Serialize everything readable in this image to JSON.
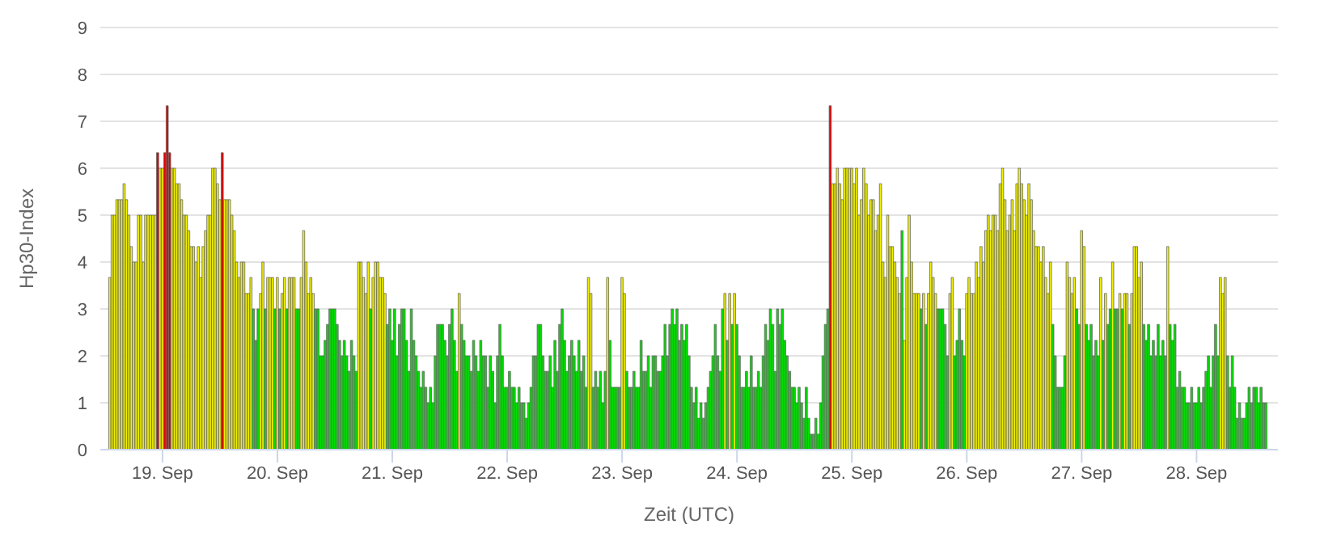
{
  "chart_data": {
    "type": "bar",
    "xlabel": "Zeit (UTC)",
    "ylabel": "Hp30-Index",
    "grid": "y",
    "legend": false,
    "xlim": [
      "--09-18T11:00",
      "--09-28T17:00"
    ],
    "xticks": [
      {
        "value": "--09-19",
        "label": "19. Sep"
      },
      {
        "value": "--09-20",
        "label": "20. Sep"
      },
      {
        "value": "--09-21",
        "label": "21. Sep"
      },
      {
        "value": "--09-22",
        "label": "22. Sep"
      },
      {
        "value": "--09-23",
        "label": "23. Sep"
      },
      {
        "value": "--09-24",
        "label": "24. Sep"
      },
      {
        "value": "--09-25",
        "label": "25. Sep"
      },
      {
        "value": "--09-26",
        "label": "26. Sep"
      },
      {
        "value": "--09-27",
        "label": "27. Sep"
      },
      {
        "value": "--09-28",
        "label": "28. Sep"
      }
    ],
    "ylim": [
      0,
      9
    ],
    "yticks": [
      0,
      1,
      2,
      3,
      4,
      5,
      6,
      7,
      8,
      9
    ],
    "x": [
      "--09-18T13:00",
      "--09-18T13:30",
      "--09-18T14:00",
      "--09-18T14:30",
      "--09-18T15:00",
      "--09-18T15:30",
      "--09-18T16:00",
      "--09-18T16:30",
      "--09-18T17:00",
      "--09-18T17:30",
      "--09-18T18:00",
      "--09-18T18:30",
      "--09-18T19:00",
      "--09-18T19:30",
      "--09-18T20:00",
      "--09-18T20:30",
      "--09-18T21:00",
      "--09-18T21:30",
      "--09-18T22:00",
      "--09-18T22:30",
      "--09-18T23:00",
      "--09-18T23:30",
      "--09-19T00:00",
      "--09-19T00:30",
      "--09-19T01:00",
      "--09-19T01:30",
      "--09-19T02:00",
      "--09-19T02:30",
      "--09-19T03:00",
      "--09-19T03:30",
      "--09-19T04:00",
      "--09-19T04:30",
      "--09-19T05:00",
      "--09-19T05:30",
      "--09-19T06:00",
      "--09-19T06:30",
      "--09-19T07:00",
      "--09-19T07:30",
      "--09-19T08:00",
      "--09-19T08:30",
      "--09-19T09:00",
      "--09-19T09:30",
      "--09-19T10:00",
      "--09-19T10:30",
      "--09-19T11:00",
      "--09-19T11:30",
      "--09-19T12:00",
      "--09-19T12:30",
      "--09-19T13:00",
      "--09-19T13:30",
      "--09-19T14:00",
      "--09-19T14:30",
      "--09-19T15:00",
      "--09-19T15:30",
      "--09-19T16:00",
      "--09-19T16:30",
      "--09-19T17:00",
      "--09-19T17:30",
      "--09-19T18:00",
      "--09-19T18:30",
      "--09-19T19:00",
      "--09-19T19:30",
      "--09-19T20:00",
      "--09-19T20:30",
      "--09-19T21:00",
      "--09-19T21:30",
      "--09-19T22:00",
      "--09-19T22:30",
      "--09-19T23:00",
      "--09-19T23:30",
      "--09-20T00:00",
      "--09-20T00:30",
      "--09-20T01:00",
      "--09-20T01:30",
      "--09-20T02:00",
      "--09-20T02:30",
      "--09-20T03:00",
      "--09-20T03:30",
      "--09-20T04:00",
      "--09-20T04:30",
      "--09-20T05:00",
      "--09-20T05:30",
      "--09-20T06:00",
      "--09-20T06:30",
      "--09-20T07:00",
      "--09-20T07:30",
      "--09-20T08:00",
      "--09-20T08:30",
      "--09-20T09:00",
      "--09-20T09:30",
      "--09-20T10:00",
      "--09-20T10:30",
      "--09-20T11:00",
      "--09-20T11:30",
      "--09-20T12:00",
      "--09-20T12:30",
      "--09-20T13:00",
      "--09-20T13:30",
      "--09-20T14:00",
      "--09-20T14:30",
      "--09-20T15:00",
      "--09-20T15:30",
      "--09-20T16:00",
      "--09-20T16:30",
      "--09-20T17:00",
      "--09-20T17:30",
      "--09-20T18:00",
      "--09-20T18:30",
      "--09-20T19:00",
      "--09-20T19:30",
      "--09-20T20:00",
      "--09-20T20:30",
      "--09-20T21:00",
      "--09-20T21:30",
      "--09-20T22:00",
      "--09-20T22:30",
      "--09-20T23:00",
      "--09-20T23:30",
      "--09-21T00:00",
      "--09-21T00:30",
      "--09-21T01:00",
      "--09-21T01:30",
      "--09-21T02:00",
      "--09-21T02:30",
      "--09-21T03:00",
      "--09-21T03:30",
      "--09-21T04:00",
      "--09-21T04:30",
      "--09-21T05:00",
      "--09-21T05:30",
      "--09-21T06:00",
      "--09-21T06:30",
      "--09-21T07:00",
      "--09-21T07:30",
      "--09-21T08:00",
      "--09-21T08:30",
      "--09-21T09:00",
      "--09-21T09:30",
      "--09-21T10:00",
      "--09-21T10:30",
      "--09-21T11:00",
      "--09-21T11:30",
      "--09-21T12:00",
      "--09-21T12:30",
      "--09-21T13:00",
      "--09-21T13:30",
      "--09-21T14:00",
      "--09-21T14:30",
      "--09-21T15:00",
      "--09-21T15:30",
      "--09-21T16:00",
      "--09-21T16:30",
      "--09-21T17:00",
      "--09-21T17:30",
      "--09-21T18:00",
      "--09-21T18:30",
      "--09-21T19:00",
      "--09-21T19:30",
      "--09-21T20:00",
      "--09-21T20:30",
      "--09-21T21:00",
      "--09-21T21:30",
      "--09-21T22:00",
      "--09-21T22:30",
      "--09-21T23:00",
      "--09-21T23:30",
      "--09-22T00:00",
      "--09-22T00:30",
      "--09-22T01:00",
      "--09-22T01:30",
      "--09-22T02:00",
      "--09-22T02:30",
      "--09-22T03:00",
      "--09-22T03:30",
      "--09-22T04:00",
      "--09-22T04:30",
      "--09-22T05:00",
      "--09-22T05:30",
      "--09-22T06:00",
      "--09-22T06:30",
      "--09-22T07:00",
      "--09-22T07:30",
      "--09-22T08:00",
      "--09-22T08:30",
      "--09-22T09:00",
      "--09-22T09:30",
      "--09-22T10:00",
      "--09-22T10:30",
      "--09-22T11:00",
      "--09-22T11:30",
      "--09-22T12:00",
      "--09-22T12:30",
      "--09-22T13:00",
      "--09-22T13:30",
      "--09-22T14:00",
      "--09-22T14:30",
      "--09-22T15:00",
      "--09-22T15:30",
      "--09-22T16:00",
      "--09-22T16:30",
      "--09-22T17:00",
      "--09-22T17:30",
      "--09-22T18:00",
      "--09-22T18:30",
      "--09-22T19:00",
      "--09-22T19:30",
      "--09-22T20:00",
      "--09-22T20:30",
      "--09-22T21:00",
      "--09-22T21:30",
      "--09-22T22:00",
      "--09-22T22:30",
      "--09-22T23:00",
      "--09-22T23:30",
      "--09-23T00:00",
      "--09-23T00:30",
      "--09-23T01:00",
      "--09-23T01:30",
      "--09-23T02:00",
      "--09-23T02:30",
      "--09-23T03:00",
      "--09-23T03:30",
      "--09-23T04:00",
      "--09-23T04:30",
      "--09-23T05:00",
      "--09-23T05:30",
      "--09-23T06:00",
      "--09-23T06:30",
      "--09-23T07:00",
      "--09-23T07:30",
      "--09-23T08:00",
      "--09-23T08:30",
      "--09-23T09:00",
      "--09-23T09:30",
      "--09-23T10:00",
      "--09-23T10:30",
      "--09-23T11:00",
      "--09-23T11:30",
      "--09-23T12:00",
      "--09-23T12:30",
      "--09-23T13:00",
      "--09-23T13:30",
      "--09-23T14:00",
      "--09-23T14:30",
      "--09-23T15:00",
      "--09-23T15:30",
      "--09-23T16:00",
      "--09-23T16:30",
      "--09-23T17:00",
      "--09-23T17:30",
      "--09-23T18:00",
      "--09-23T18:30",
      "--09-23T19:00",
      "--09-23T19:30",
      "--09-23T20:00",
      "--09-23T20:30",
      "--09-23T21:00",
      "--09-23T21:30",
      "--09-23T22:00",
      "--09-23T22:30",
      "--09-23T23:00",
      "--09-23T23:30",
      "--09-24T00:00",
      "--09-24T00:30",
      "--09-24T01:00",
      "--09-24T01:30",
      "--09-24T02:00",
      "--09-24T02:30",
      "--09-24T03:00",
      "--09-24T03:30",
      "--09-24T04:00",
      "--09-24T04:30",
      "--09-24T05:00",
      "--09-24T05:30",
      "--09-24T06:00",
      "--09-24T06:30",
      "--09-24T07:00",
      "--09-24T07:30",
      "--09-24T08:00",
      "--09-24T08:30",
      "--09-24T09:00",
      "--09-24T09:30",
      "--09-24T10:00",
      "--09-24T10:30",
      "--09-24T11:00",
      "--09-24T11:30",
      "--09-24T12:00",
      "--09-24T12:30",
      "--09-24T13:00",
      "--09-24T13:30",
      "--09-24T14:00",
      "--09-24T14:30",
      "--09-24T15:00",
      "--09-24T15:30",
      "--09-24T16:00",
      "--09-24T16:30",
      "--09-24T17:00",
      "--09-24T17:30",
      "--09-24T18:00",
      "--09-24T18:30",
      "--09-24T19:00",
      "--09-24T19:30",
      "--09-24T20:00",
      "--09-24T20:30",
      "--09-24T21:00",
      "--09-24T21:30",
      "--09-24T22:00",
      "--09-24T22:30",
      "--09-24T23:00",
      "--09-24T23:30",
      "--09-25T00:00",
      "--09-25T00:30",
      "--09-25T01:00",
      "--09-25T01:30",
      "--09-25T02:00",
      "--09-25T02:30",
      "--09-25T03:00",
      "--09-25T03:30",
      "--09-25T04:00",
      "--09-25T04:30",
      "--09-25T05:00",
      "--09-25T05:30",
      "--09-25T06:00",
      "--09-25T06:30",
      "--09-25T07:00",
      "--09-25T07:30",
      "--09-25T08:00",
      "--09-25T08:30",
      "--09-25T09:00",
      "--09-25T09:30",
      "--09-25T10:00",
      "--09-25T10:30",
      "--09-25T11:00",
      "--09-25T11:30",
      "--09-25T12:00",
      "--09-25T12:30",
      "--09-25T13:00",
      "--09-25T13:30",
      "--09-25T14:00",
      "--09-25T14:30",
      "--09-25T15:00",
      "--09-25T15:30",
      "--09-25T16:00",
      "--09-25T16:30",
      "--09-25T17:00",
      "--09-25T17:30",
      "--09-25T18:00",
      "--09-25T18:30",
      "--09-25T19:00",
      "--09-25T19:30",
      "--09-25T20:00",
      "--09-25T20:30",
      "--09-25T21:00",
      "--09-25T21:30",
      "--09-25T22:00",
      "--09-25T22:30",
      "--09-25T23:00",
      "--09-25T23:30",
      "--09-26T00:00",
      "--09-26T00:30",
      "--09-26T01:00",
      "--09-26T01:30",
      "--09-26T02:00",
      "--09-26T02:30",
      "--09-26T03:00",
      "--09-26T03:30",
      "--09-26T04:00",
      "--09-26T04:30",
      "--09-26T05:00",
      "--09-26T05:30",
      "--09-26T06:00",
      "--09-26T06:30",
      "--09-26T07:00",
      "--09-26T07:30",
      "--09-26T08:00",
      "--09-26T08:30",
      "--09-26T09:00",
      "--09-26T09:30",
      "--09-26T10:00",
      "--09-26T10:30",
      "--09-26T11:00",
      "--09-26T11:30",
      "--09-26T12:00",
      "--09-26T12:30",
      "--09-26T13:00",
      "--09-26T13:30",
      "--09-26T14:00",
      "--09-26T14:30",
      "--09-26T15:00",
      "--09-26T15:30",
      "--09-26T16:00",
      "--09-26T16:30",
      "--09-26T17:00",
      "--09-26T17:30",
      "--09-26T18:00",
      "--09-26T18:30",
      "--09-26T19:00",
      "--09-26T19:30",
      "--09-26T20:00",
      "--09-26T20:30",
      "--09-26T21:00",
      "--09-26T21:30",
      "--09-26T22:00",
      "--09-26T22:30",
      "--09-26T23:00",
      "--09-26T23:30",
      "--09-27T00:00",
      "--09-27T00:30",
      "--09-27T01:00",
      "--09-27T01:30",
      "--09-27T02:00",
      "--09-27T02:30",
      "--09-27T03:00",
      "--09-27T03:30",
      "--09-27T04:00",
      "--09-27T04:30",
      "--09-27T05:00",
      "--09-27T05:30",
      "--09-27T06:00",
      "--09-27T06:30",
      "--09-27T07:00",
      "--09-27T07:30",
      "--09-27T08:00",
      "--09-27T08:30",
      "--09-27T09:00",
      "--09-27T09:30",
      "--09-27T10:00",
      "--09-27T10:30",
      "--09-27T11:00",
      "--09-27T11:30",
      "--09-27T12:00",
      "--09-27T12:30",
      "--09-27T13:00",
      "--09-27T13:30",
      "--09-27T14:00",
      "--09-27T14:30",
      "--09-27T15:00",
      "--09-27T15:30",
      "--09-27T16:00",
      "--09-27T16:30",
      "--09-27T17:00",
      "--09-27T17:30",
      "--09-27T18:00",
      "--09-27T18:30",
      "--09-27T19:00",
      "--09-27T19:30",
      "--09-27T20:00",
      "--09-27T20:30",
      "--09-27T21:00",
      "--09-27T21:30",
      "--09-27T22:00",
      "--09-27T22:30",
      "--09-27T23:00",
      "--09-27T23:30",
      "--09-28T00:00",
      "--09-28T00:30",
      "--09-28T01:00",
      "--09-28T01:30",
      "--09-28T02:00",
      "--09-28T02:30",
      "--09-28T03:00",
      "--09-28T03:30",
      "--09-28T04:00",
      "--09-28T04:30",
      "--09-28T05:00",
      "--09-28T05:30",
      "--09-28T06:00",
      "--09-28T06:30",
      "--09-28T07:00",
      "--09-28T07:30",
      "--09-28T08:00",
      "--09-28T08:30",
      "--09-28T09:00",
      "--09-28T09:30",
      "--09-28T10:00",
      "--09-28T10:30",
      "--09-28T11:00",
      "--09-28T11:30",
      "--09-28T12:00",
      "--09-28T12:30",
      "--09-28T13:00",
      "--09-28T13:30",
      "--09-28T14:00",
      "--09-28T14:30"
    ],
    "values": [
      3.67,
      5,
      5,
      5.33,
      5.33,
      5.33,
      5.67,
      5.33,
      5,
      4.33,
      4,
      4,
      5,
      5,
      4,
      5,
      5,
      5,
      5,
      5,
      6.33,
      6,
      6,
      6.33,
      7.33,
      6.33,
      6,
      6,
      5.67,
      5.67,
      5.33,
      5,
      5,
      4.67,
      4.33,
      4.33,
      4,
      4.33,
      3.67,
      4.33,
      4.67,
      5,
      5,
      6,
      6,
      5.67,
      5.33,
      6.33,
      5.33,
      5.33,
      5.33,
      5,
      4.67,
      4,
      3.67,
      4,
      4,
      3.33,
      3.33,
      3.67,
      3,
      2.33,
      3,
      3.33,
      4,
      3,
      3.67,
      3.67,
      3.67,
      3,
      3.67,
      3,
      3.33,
      3.67,
      3,
      3.67,
      3.67,
      3.67,
      3,
      3,
      3.67,
      4.67,
      4,
      3.33,
      3.67,
      3.33,
      3,
      3,
      2,
      2,
      2.33,
      2.67,
      3,
      3,
      3,
      2.67,
      2.33,
      2,
      2.33,
      2,
      1.67,
      2.33,
      2,
      1.67,
      4,
      4,
      3.67,
      3.33,
      4,
      3,
      3.67,
      4,
      4,
      3.67,
      3.67,
      3.33,
      2.67,
      3,
      2.33,
      3,
      2,
      2.67,
      3,
      3,
      2.33,
      1.67,
      3,
      2.33,
      2,
      1.67,
      1.33,
      1.67,
      1.33,
      1,
      1.33,
      1,
      2,
      2.67,
      2.67,
      2.67,
      2.33,
      2,
      2.67,
      3,
      2.33,
      1.67,
      3.33,
      2.67,
      2.33,
      2,
      2,
      1.67,
      2.33,
      2,
      1.67,
      2.33,
      2,
      2,
      1.33,
      2,
      1.67,
      1,
      2,
      2.67,
      2,
      1.33,
      1.33,
      1.67,
      1.33,
      1.33,
      1,
      1.33,
      1,
      1,
      0.67,
      1,
      1.33,
      2,
      2,
      2.67,
      2.67,
      2,
      1.67,
      1.67,
      2,
      1.33,
      2.33,
      1.67,
      2.67,
      3,
      2.33,
      1.67,
      2,
      2.33,
      2,
      1.67,
      2.33,
      1.67,
      2,
      1.33,
      3.67,
      3.33,
      1.33,
      1.67,
      1.33,
      1.67,
      1,
      1.67,
      3.67,
      2.33,
      1.33,
      1.33,
      1.33,
      1.33,
      3.67,
      3.33,
      1.67,
      1.33,
      1.33,
      1.67,
      1.33,
      1.33,
      2.33,
      1.67,
      1.67,
      2,
      1.33,
      2,
      2,
      1.67,
      1.67,
      2,
      2.67,
      2,
      2.67,
      3,
      2.67,
      3,
      2.33,
      2.67,
      2.33,
      2.67,
      2,
      1.33,
      1,
      1.33,
      0.67,
      1,
      0.67,
      1,
      1.33,
      1.67,
      2,
      2.67,
      2,
      1.67,
      3,
      3.33,
      2.33,
      3.33,
      2.67,
      3.33,
      2.67,
      2,
      1.33,
      1.33,
      1.67,
      1.33,
      2,
      1.33,
      1.33,
      1.67,
      1.33,
      2,
      2.67,
      2.33,
      3,
      2.67,
      1.67,
      3,
      2.67,
      3,
      2.33,
      2,
      1.67,
      1.33,
      1.33,
      1,
      1.33,
      1,
      0.67,
      1.33,
      0.67,
      0.33,
      0.33,
      0.67,
      0.33,
      1,
      2,
      2.67,
      3,
      7.33,
      5.67,
      5.67,
      6,
      5.67,
      5.33,
      6,
      6,
      6,
      6,
      5.67,
      6,
      5,
      5.33,
      6,
      5.67,
      5,
      5.33,
      5.33,
      4.67,
      5,
      5.67,
      4,
      3.67,
      5,
      4.33,
      4.33,
      4,
      3.67,
      3.33,
      4.67,
      2.33,
      3.67,
      5,
      4,
      3.33,
      3.33,
      3.33,
      3,
      3.33,
      2.67,
      3.33,
      4,
      3.67,
      3.33,
      3,
      3,
      3,
      2.67,
      2,
      3.33,
      3.67,
      2,
      2.33,
      3,
      2.33,
      2,
      3.33,
      3.67,
      3.33,
      3.33,
      4,
      3.67,
      4.33,
      4,
      4.67,
      5,
      4.67,
      5,
      5,
      4.67,
      5.67,
      6,
      5.33,
      4.67,
      5,
      5.33,
      4.67,
      5.67,
      6,
      5.67,
      5.33,
      5,
      5.67,
      5.33,
      4.67,
      4.33,
      4.33,
      4,
      4.33,
      3.67,
      3.33,
      4,
      2.67,
      2,
      1.33,
      1.33,
      1.33,
      2,
      4,
      3.67,
      3.33,
      3.67,
      3,
      2.67,
      4.67,
      4.33,
      2.67,
      2.33,
      2.67,
      2,
      2.33,
      2,
      3.67,
      2.33,
      3.33,
      2.67,
      3,
      4,
      3,
      3,
      3.33,
      3,
      3.33,
      3.33,
      2.67,
      3.33,
      4.33,
      4.33,
      3.67,
      4,
      2.67,
      2.33,
      2.67,
      2,
      2.33,
      2,
      2.67,
      2,
      2.33,
      2,
      4.33,
      2.67,
      2.33,
      2.67,
      1.33,
      1.67,
      1.33,
      1.33,
      1,
      1,
      1.33,
      1,
      1,
      1.33,
      1,
      1.33,
      1.67,
      2,
      1.33,
      2,
      2.67,
      2,
      3.67,
      3.33,
      3.67,
      2,
      1.33,
      2,
      1.33,
      0.67,
      1,
      0.67,
      0.67,
      1,
      1.33,
      1,
      1.33,
      1.33,
      1,
      1.33,
      1,
      1
    ],
    "colors": [
      "#f0f000",
      "#f0f000",
      "#f0f000",
      "#f0f000",
      "#f0f000",
      "#f0f000",
      "#f0f000",
      "#f0f000",
      "#f0f000",
      "#f0f000",
      "#f0f000",
      "#f0f000",
      "#f0f000",
      "#f0f000",
      "#f0f000",
      "#f0f000",
      "#f0f000",
      "#f0f000",
      "#f0f000",
      "#f0f000",
      "#e00000",
      "#f0f000",
      "#f0f000",
      "#e00000",
      "#e00000",
      "#e00000",
      "#f0f000",
      "#f0f000",
      "#f0f000",
      "#f0f000",
      "#f0f000",
      "#f0f000",
      "#f0f000",
      "#f0f000",
      "#f0f000",
      "#f0f000",
      "#f0f000",
      "#f0f000",
      "#f0f000",
      "#f0f000",
      "#f0f000",
      "#f0f000",
      "#f0f000",
      "#f0f000",
      "#f0f000",
      "#f0f000",
      "#f0f000",
      "#e00000",
      "#f0f000",
      "#f0f000",
      "#f0f000",
      "#f0f000",
      "#f0f000",
      "#f0f000",
      "#f0f000",
      "#f0f000",
      "#f0f000",
      "#f0f000",
      "#f0f000",
      "#f0f000",
      "#00e000",
      "#00e000",
      "#00e000",
      "#f0f000",
      "#f0f000",
      "#00e000",
      "#f0f000",
      "#f0f000",
      "#f0f000",
      "#00e000",
      "#f0f000",
      "#00e000",
      "#f0f000",
      "#f0f000",
      "#00e000",
      "#f0f000",
      "#f0f000",
      "#f0f000",
      "#00e000",
      "#00e000",
      "#f0f000",
      "#f0f000",
      "#f0f000",
      "#f0f000",
      "#f0f000",
      "#f0f000",
      "#00e000",
      "#00e000",
      "#00e000",
      "#00e000",
      "#00e000",
      "#00e000",
      "#00e000",
      "#00e000",
      "#00e000",
      "#00e000",
      "#00e000",
      "#00e000",
      "#00e000",
      "#00e000",
      "#00e000",
      "#00e000",
      "#00e000",
      "#00e000",
      "#f0f000",
      "#f0f000",
      "#f0f000",
      "#f0f000",
      "#f0f000",
      "#00e000",
      "#f0f000",
      "#f0f000",
      "#f0f000",
      "#f0f000",
      "#f0f000",
      "#f0f000",
      "#00e000",
      "#00e000",
      "#00e000",
      "#00e000",
      "#00e000",
      "#00e000",
      "#00e000",
      "#00e000",
      "#00e000",
      "#00e000",
      "#00e000",
      "#00e000",
      "#00e000",
      "#00e000",
      "#00e000",
      "#00e000",
      "#00e000",
      "#00e000",
      "#00e000",
      "#00e000",
      "#00e000",
      "#00e000",
      "#00e000",
      "#00e000",
      "#00e000",
      "#00e000",
      "#00e000",
      "#00e000",
      "#00e000",
      "#00e000",
      "#f0f000",
      "#00e000",
      "#00e000",
      "#00e000",
      "#00e000",
      "#00e000",
      "#00e000",
      "#00e000",
      "#00e000",
      "#00e000",
      "#00e000",
      "#00e000",
      "#00e000",
      "#00e000",
      "#00e000",
      "#00e000",
      "#00e000",
      "#00e000",
      "#00e000",
      "#00e000",
      "#00e000",
      "#00e000",
      "#00e000",
      "#00e000",
      "#00e000",
      "#00e000",
      "#00e000",
      "#00e000",
      "#00e000",
      "#00e000",
      "#00e000",
      "#00e000",
      "#00e000",
      "#00e000",
      "#00e000",
      "#00e000",
      "#00e000",
      "#00e000",
      "#00e000",
      "#00e000",
      "#00e000",
      "#00e000",
      "#00e000",
      "#00e000",
      "#00e000",
      "#00e000",
      "#00e000",
      "#00e000",
      "#00e000",
      "#00e000",
      "#00e000",
      "#00e000",
      "#00e000",
      "#00e000",
      "#f0f000",
      "#f0f000",
      "#00e000",
      "#00e000",
      "#00e000",
      "#00e000",
      "#00e000",
      "#00e000",
      "#f0f000",
      "#00e000",
      "#00e000",
      "#00e000",
      "#00e000",
      "#00e000",
      "#f0f000",
      "#f0f000",
      "#00e000",
      "#00e000",
      "#00e000",
      "#00e000",
      "#00e000",
      "#00e000",
      "#00e000",
      "#00e000",
      "#00e000",
      "#00e000",
      "#00e000",
      "#00e000",
      "#00e000",
      "#00e000",
      "#00e000",
      "#00e000",
      "#00e000",
      "#00e000",
      "#00e000",
      "#00e000",
      "#00e000",
      "#00e000",
      "#00e000",
      "#00e000",
      "#00e000",
      "#00e000",
      "#00e000",
      "#00e000",
      "#00e000",
      "#00e000",
      "#00e000",
      "#00e000",
      "#00e000",
      "#00e000",
      "#00e000",
      "#00e000",
      "#00e000",
      "#00e000",
      "#00e000",
      "#00e000",
      "#00e000",
      "#f0f000",
      "#00e000",
      "#f0f000",
      "#00e000",
      "#f0f000",
      "#00e000",
      "#00e000",
      "#00e000",
      "#00e000",
      "#00e000",
      "#00e000",
      "#00e000",
      "#00e000",
      "#00e000",
      "#00e000",
      "#00e000",
      "#00e000",
      "#00e000",
      "#00e000",
      "#00e000",
      "#00e000",
      "#00e000",
      "#00e000",
      "#00e000",
      "#00e000",
      "#00e000",
      "#00e000",
      "#00e000",
      "#00e000",
      "#00e000",
      "#00e000",
      "#00e000",
      "#00e000",
      "#00e000",
      "#00e000",
      "#00e000",
      "#00e000",
      "#00e000",
      "#00e000",
      "#00e000",
      "#00e000",
      "#00e000",
      "#00e000",
      "#00e000",
      "#e00000",
      "#f0f000",
      "#f0f000",
      "#f0f000",
      "#f0f000",
      "#f0f000",
      "#f0f000",
      "#f0f000",
      "#f0f000",
      "#f0f000",
      "#f0f000",
      "#f0f000",
      "#f0f000",
      "#f0f000",
      "#f0f000",
      "#f0f000",
      "#f0f000",
      "#f0f000",
      "#f0f000",
      "#f0f000",
      "#f0f000",
      "#f0f000",
      "#f0f000",
      "#f0f000",
      "#f0f000",
      "#f0f000",
      "#f0f000",
      "#f0f000",
      "#f0f000",
      "#f0f000",
      "#00e000",
      "#f0f000",
      "#f0f000",
      "#f0f000",
      "#f0f000",
      "#f0f000",
      "#f0f000",
      "#f0f000",
      "#00e000",
      "#f0f000",
      "#00e000",
      "#f0f000",
      "#f0f000",
      "#f0f000",
      "#f0f000",
      "#00e000",
      "#00e000",
      "#00e000",
      "#00e000",
      "#00e000",
      "#f0f000",
      "#f0f000",
      "#00e000",
      "#00e000",
      "#00e000",
      "#00e000",
      "#00e000",
      "#f0f000",
      "#f0f000",
      "#f0f000",
      "#f0f000",
      "#f0f000",
      "#f0f000",
      "#f0f000",
      "#f0f000",
      "#f0f000",
      "#f0f000",
      "#f0f000",
      "#f0f000",
      "#f0f000",
      "#f0f000",
      "#f0f000",
      "#f0f000",
      "#f0f000",
      "#f0f000",
      "#f0f000",
      "#f0f000",
      "#f0f000",
      "#f0f000",
      "#f0f000",
      "#f0f000",
      "#f0f000",
      "#f0f000",
      "#f0f000",
      "#f0f000",
      "#f0f000",
      "#f0f000",
      "#f0f000",
      "#f0f000",
      "#f0f000",
      "#f0f000",
      "#f0f000",
      "#f0f000",
      "#00e000",
      "#00e000",
      "#00e000",
      "#00e000",
      "#00e000",
      "#00e000",
      "#f0f000",
      "#f0f000",
      "#f0f000",
      "#f0f000",
      "#00e000",
      "#00e000",
      "#f0f000",
      "#f0f000",
      "#00e000",
      "#00e000",
      "#00e000",
      "#00e000",
      "#00e000",
      "#00e000",
      "#f0f000",
      "#00e000",
      "#f0f000",
      "#00e000",
      "#00e000",
      "#f0f000",
      "#00e000",
      "#00e000",
      "#f0f000",
      "#00e000",
      "#f0f000",
      "#f0f000",
      "#00e000",
      "#f0f000",
      "#f0f000",
      "#f0f000",
      "#f0f000",
      "#f0f000",
      "#00e000",
      "#00e000",
      "#00e000",
      "#00e000",
      "#00e000",
      "#00e000",
      "#00e000",
      "#00e000",
      "#00e000",
      "#00e000",
      "#f0f000",
      "#00e000",
      "#00e000",
      "#00e000",
      "#00e000",
      "#00e000",
      "#00e000",
      "#00e000",
      "#00e000",
      "#00e000",
      "#00e000",
      "#00e000",
      "#00e000",
      "#00e000",
      "#00e000",
      "#00e000",
      "#00e000",
      "#00e000",
      "#00e000",
      "#00e000",
      "#00e000",
      "#00e000",
      "#f0f000",
      "#f0f000",
      "#f0f000",
      "#00e000",
      "#00e000",
      "#00e000",
      "#00e000",
      "#00e000",
      "#00e000",
      "#00e000",
      "#00e000",
      "#00e000",
      "#00e000",
      "#00e000",
      "#00e000",
      "#00e000",
      "#00e000",
      "#00e000",
      "#00e000",
      "#00e000"
    ]
  }
}
